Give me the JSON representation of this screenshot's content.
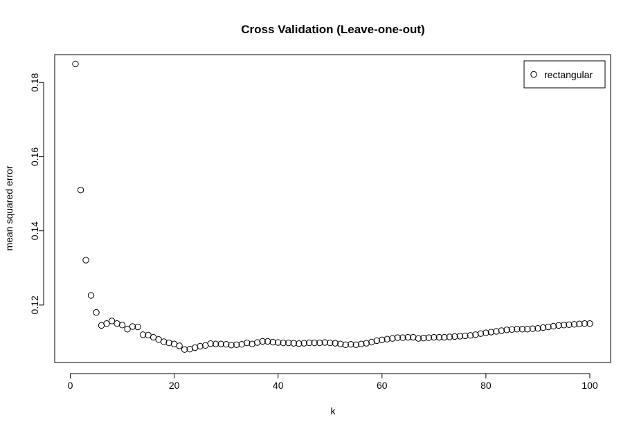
{
  "chart_data": {
    "type": "scatter",
    "title": "Cross Validation (Leave-one-out)",
    "xlabel": "k",
    "ylabel": "mean squared error",
    "xlim": [
      -3,
      104
    ],
    "ylim": [
      0.1045,
      0.1875
    ],
    "xticks": [
      0,
      20,
      40,
      60,
      80,
      100
    ],
    "yticks": [
      0.12,
      0.14,
      0.16,
      0.18
    ],
    "xtick_labels": [
      "0",
      "20",
      "40",
      "60",
      "80",
      "100"
    ],
    "ytick_labels": [
      "0.12",
      "0.14",
      "0.16",
      "0.18"
    ],
    "grid": false,
    "legend": {
      "position": "top-right",
      "entries": [
        "rectangular"
      ]
    },
    "series": [
      {
        "name": "rectangular",
        "marker": "open-circle",
        "x": [
          1,
          2,
          3,
          4,
          5,
          6,
          7,
          8,
          9,
          10,
          11,
          12,
          13,
          14,
          15,
          16,
          17,
          18,
          19,
          20,
          21,
          22,
          23,
          24,
          25,
          26,
          27,
          28,
          29,
          30,
          31,
          32,
          33,
          34,
          35,
          36,
          37,
          38,
          39,
          40,
          41,
          42,
          43,
          44,
          45,
          46,
          47,
          48,
          49,
          50,
          51,
          52,
          53,
          54,
          55,
          56,
          57,
          58,
          59,
          60,
          61,
          62,
          63,
          64,
          65,
          66,
          67,
          68,
          69,
          70,
          71,
          72,
          73,
          74,
          75,
          76,
          77,
          78,
          79,
          80,
          81,
          82,
          83,
          84,
          85,
          86,
          87,
          88,
          89,
          90,
          91,
          92,
          93,
          94,
          95,
          96,
          97,
          98,
          99,
          100
        ],
        "y": [
          0.185,
          0.151,
          0.1321,
          0.1226,
          0.118,
          0.1145,
          0.115,
          0.1157,
          0.115,
          0.1146,
          0.1135,
          0.1142,
          0.1141,
          0.112,
          0.1119,
          0.1113,
          0.1107,
          0.1101,
          0.1098,
          0.1095,
          0.109,
          0.108,
          0.1081,
          0.1085,
          0.1089,
          0.1091,
          0.1096,
          0.1095,
          0.1095,
          0.1094,
          0.1092,
          0.1093,
          0.1094,
          0.1098,
          0.1095,
          0.1099,
          0.1102,
          0.1102,
          0.11,
          0.1099,
          0.1098,
          0.1098,
          0.1097,
          0.1096,
          0.1097,
          0.1098,
          0.1098,
          0.1098,
          0.1099,
          0.1098,
          0.1097,
          0.1095,
          0.1093,
          0.1094,
          0.1093,
          0.1095,
          0.1097,
          0.11,
          0.1104,
          0.1106,
          0.1108,
          0.111,
          0.1112,
          0.1112,
          0.1113,
          0.1113,
          0.111,
          0.1111,
          0.1112,
          0.1113,
          0.1113,
          0.1113,
          0.1114,
          0.1115,
          0.1116,
          0.1117,
          0.1118,
          0.112,
          0.1123,
          0.1125,
          0.1127,
          0.1129,
          0.1131,
          0.1133,
          0.1134,
          0.1135,
          0.1135,
          0.1135,
          0.1136,
          0.1137,
          0.1139,
          0.1141,
          0.1143,
          0.1145,
          0.1146,
          0.1147,
          0.1148,
          0.1149,
          0.115,
          0.115
        ]
      }
    ]
  }
}
